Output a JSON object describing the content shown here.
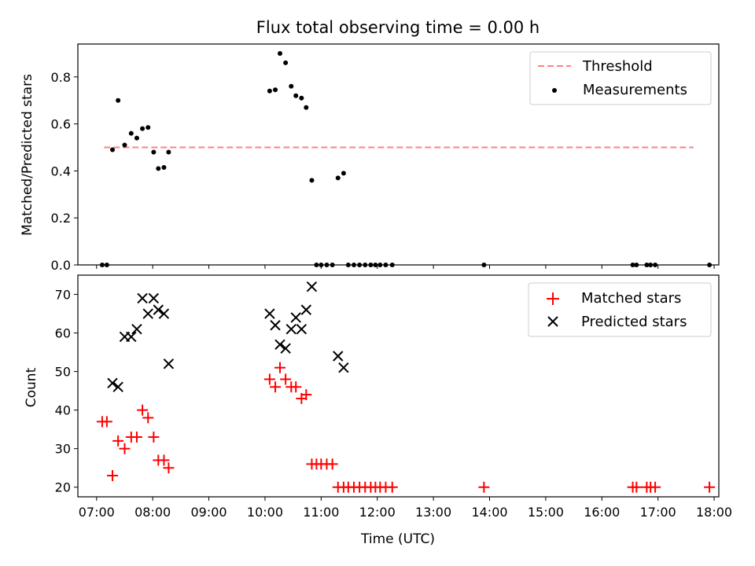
{
  "chart_data": [
    {
      "type": "scatter",
      "title": "Flux total observing time = 0.00 h",
      "xlabel": "",
      "ylabel": "Matched/Predicted stars",
      "xlim": [
        "06:40",
        "18:05"
      ],
      "ylim": [
        0,
        0.94
      ],
      "x_ticks": [
        "07:00",
        "08:00",
        "09:00",
        "10:00",
        "11:00",
        "12:00",
        "13:00",
        "14:00",
        "15:00",
        "16:00",
        "17:00",
        "18:00"
      ],
      "y_ticks": [
        "0.0",
        "0.2",
        "0.4",
        "0.6",
        "0.8"
      ],
      "legend_position": "top-right",
      "legend": [
        "Threshold",
        "Measurements"
      ],
      "threshold": {
        "name": "Threshold",
        "y": 0.5,
        "x_start": "07:08",
        "x_end": "17:38",
        "color": "#ff8080",
        "style": "dashed"
      },
      "series": [
        {
          "name": "Measurements",
          "color": "#000000",
          "marker": "dot",
          "points": [
            [
              "07:06",
              0.0
            ],
            [
              "07:11",
              0.0
            ],
            [
              "07:17",
              0.49
            ],
            [
              "07:23",
              0.7
            ],
            [
              "07:30",
              0.51
            ],
            [
              "07:37",
              0.56
            ],
            [
              "07:43",
              0.54
            ],
            [
              "07:49",
              0.58
            ],
            [
              "07:55",
              0.585
            ],
            [
              "08:01",
              0.48
            ],
            [
              "08:06",
              0.41
            ],
            [
              "08:12",
              0.415
            ],
            [
              "08:17",
              0.48
            ],
            [
              "10:05",
              0.74
            ],
            [
              "10:11",
              0.745
            ],
            [
              "10:16",
              0.9
            ],
            [
              "10:22",
              0.86
            ],
            [
              "10:28",
              0.76
            ],
            [
              "10:33",
              0.72
            ],
            [
              "10:39",
              0.71
            ],
            [
              "10:44",
              0.67
            ],
            [
              "10:50",
              0.36
            ],
            [
              "10:55",
              0.0
            ],
            [
              "11:00",
              0.0
            ],
            [
              "11:06",
              0.0
            ],
            [
              "11:12",
              0.0
            ],
            [
              "11:18",
              0.37
            ],
            [
              "11:24",
              0.39
            ],
            [
              "11:29",
              0.0
            ],
            [
              "11:35",
              0.0
            ],
            [
              "11:41",
              0.0
            ],
            [
              "11:47",
              0.0
            ],
            [
              "11:53",
              0.0
            ],
            [
              "11:58",
              0.0
            ],
            [
              "12:03",
              0.0
            ],
            [
              "12:09",
              0.0
            ],
            [
              "12:16",
              0.0
            ],
            [
              "13:54",
              0.0
            ],
            [
              "16:33",
              0.0
            ],
            [
              "16:37",
              0.0
            ],
            [
              "16:48",
              0.0
            ],
            [
              "16:52",
              0.0
            ],
            [
              "16:57",
              0.0
            ],
            [
              "17:55",
              0.0
            ]
          ]
        }
      ]
    },
    {
      "type": "scatter",
      "title": "",
      "xlabel": "Time (UTC)",
      "ylabel": "Count",
      "xlim": [
        "06:40",
        "18:05"
      ],
      "ylim": [
        17.5,
        75
      ],
      "x_ticks": [
        "07:00",
        "08:00",
        "09:00",
        "10:00",
        "11:00",
        "12:00",
        "13:00",
        "14:00",
        "15:00",
        "16:00",
        "17:00",
        "18:00"
      ],
      "y_ticks": [
        "20",
        "30",
        "40",
        "50",
        "60",
        "70"
      ],
      "legend_position": "top-right",
      "legend": [
        "Matched stars",
        "Predicted stars"
      ],
      "series": [
        {
          "name": "Matched stars",
          "color": "#ff0000",
          "marker": "plus",
          "points": [
            [
              "07:06",
              37
            ],
            [
              "07:11",
              37
            ],
            [
              "07:17",
              23
            ],
            [
              "07:23",
              32
            ],
            [
              "07:30",
              30
            ],
            [
              "07:37",
              33
            ],
            [
              "07:43",
              33
            ],
            [
              "07:49",
              40
            ],
            [
              "07:55",
              38
            ],
            [
              "08:01",
              33
            ],
            [
              "08:06",
              27
            ],
            [
              "08:12",
              27
            ],
            [
              "08:17",
              25
            ],
            [
              "10:05",
              48
            ],
            [
              "10:11",
              46
            ],
            [
              "10:16",
              51
            ],
            [
              "10:22",
              48
            ],
            [
              "10:28",
              46
            ],
            [
              "10:33",
              46
            ],
            [
              "10:39",
              43
            ],
            [
              "10:44",
              44
            ],
            [
              "10:50",
              26
            ],
            [
              "10:55",
              26
            ],
            [
              "11:00",
              26
            ],
            [
              "11:06",
              26
            ],
            [
              "11:12",
              26
            ],
            [
              "11:18",
              20
            ],
            [
              "11:24",
              20
            ],
            [
              "11:29",
              20
            ],
            [
              "11:35",
              20
            ],
            [
              "11:41",
              20
            ],
            [
              "11:47",
              20
            ],
            [
              "11:53",
              20
            ],
            [
              "11:58",
              20
            ],
            [
              "12:03",
              20
            ],
            [
              "12:09",
              20
            ],
            [
              "12:16",
              20
            ],
            [
              "13:54",
              20
            ],
            [
              "16:33",
              20
            ],
            [
              "16:37",
              20
            ],
            [
              "16:48",
              20
            ],
            [
              "16:52",
              20
            ],
            [
              "16:57",
              20
            ],
            [
              "17:55",
              20
            ]
          ]
        },
        {
          "name": "Predicted stars",
          "color": "#000000",
          "marker": "x",
          "points": [
            [
              "07:17",
              47
            ],
            [
              "07:23",
              46
            ],
            [
              "07:30",
              59
            ],
            [
              "07:37",
              59
            ],
            [
              "07:43",
              61
            ],
            [
              "07:49",
              69
            ],
            [
              "07:55",
              65
            ],
            [
              "08:01",
              69
            ],
            [
              "08:06",
              66
            ],
            [
              "08:12",
              65
            ],
            [
              "08:17",
              52
            ],
            [
              "10:05",
              65
            ],
            [
              "10:11",
              62
            ],
            [
              "10:16",
              57
            ],
            [
              "10:22",
              56
            ],
            [
              "10:28",
              61
            ],
            [
              "10:33",
              64
            ],
            [
              "10:39",
              61
            ],
            [
              "10:44",
              66
            ],
            [
              "10:50",
              72
            ],
            [
              "11:18",
              54
            ],
            [
              "11:24",
              51
            ]
          ]
        }
      ]
    }
  ]
}
